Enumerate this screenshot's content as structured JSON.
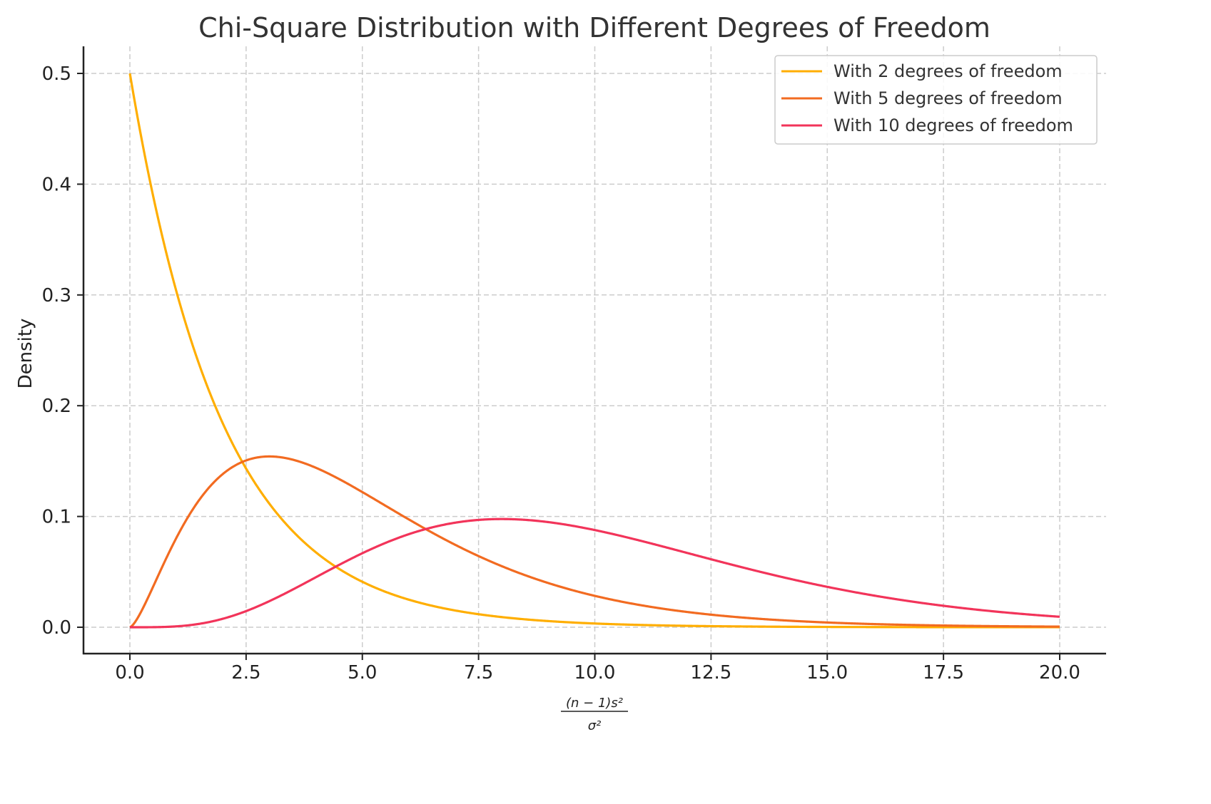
{
  "chart_data": {
    "type": "line",
    "title": "Chi-Square Distribution with Different Degrees of Freedom",
    "xlabel_numerator": "(n − 1)s²",
    "xlabel_denominator": "σ²",
    "xlabel": "(n-1)s^2 / sigma^2",
    "ylabel": "Density",
    "xlim": [
      -1.0,
      21.0
    ],
    "ylim": [
      -0.024,
      0.525
    ],
    "x_ticks": [
      "0.0",
      "2.5",
      "5.0",
      "7.5",
      "10.0",
      "12.5",
      "15.0",
      "17.5",
      "20.0"
    ],
    "y_ticks": [
      "0.0",
      "0.1",
      "0.2",
      "0.3",
      "0.4",
      "0.5"
    ],
    "grid": true,
    "legend_position": "upper right",
    "x": [
      0,
      0.5,
      1,
      1.5,
      2,
      2.5,
      3,
      3.5,
      4,
      4.5,
      5,
      6,
      7,
      8,
      9,
      10,
      11,
      12,
      13,
      14,
      15,
      16,
      17,
      18,
      19,
      20
    ],
    "series": [
      {
        "name": "With 2 degrees of freedom",
        "color": "#FFAE00",
        "df": 2,
        "values": [
          0.5,
          0.389,
          0.303,
          0.236,
          0.184,
          0.143,
          0.112,
          0.087,
          0.068,
          0.053,
          0.041,
          0.025,
          0.015,
          0.009,
          0.006,
          0.003,
          0.002,
          0.001,
          0.001,
          0.0,
          0.0,
          0.0,
          0.0,
          0.0,
          0.0,
          0.0
        ]
      },
      {
        "name": "With 5 degrees of freedom",
        "color": "#F26B21",
        "df": 5,
        "values": [
          0.0,
          0.044,
          0.081,
          0.112,
          0.138,
          0.15,
          0.154,
          0.15,
          0.144,
          0.133,
          0.122,
          0.097,
          0.075,
          0.057,
          0.042,
          0.029,
          0.021,
          0.015,
          0.01,
          0.007,
          0.005,
          0.003,
          0.002,
          0.002,
          0.001,
          0.001
        ]
      },
      {
        "name": "With 10 degrees of freedom",
        "color": "#F2345A",
        "df": 10,
        "values": [
          0.0,
          0.0,
          0.001,
          0.004,
          0.008,
          0.014,
          0.025,
          0.036,
          0.045,
          0.058,
          0.067,
          0.08,
          0.091,
          0.098,
          0.097,
          0.088,
          0.081,
          0.072,
          0.063,
          0.054,
          0.045,
          0.036,
          0.03,
          0.024,
          0.019,
          0.01
        ]
      }
    ]
  },
  "legend": {
    "items": [
      {
        "label": "With 2 degrees of freedom",
        "color": "#FFAE00"
      },
      {
        "label": "With 5 degrees of freedom",
        "color": "#F26B21"
      },
      {
        "label": "With 10 degrees of freedom",
        "color": "#F2345A"
      }
    ]
  }
}
